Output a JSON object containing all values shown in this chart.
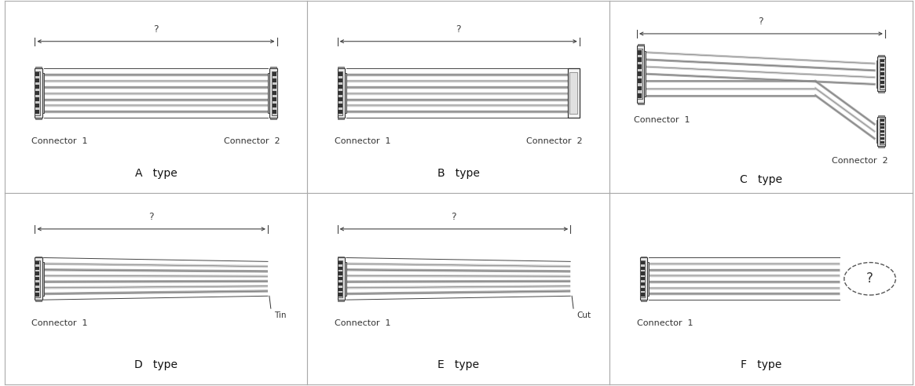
{
  "bg": "#ffffff",
  "border_color": "#aaaaaa",
  "wire_dark": "#888888",
  "wire_light": "#cccccc",
  "wire_black": "#333333",
  "conn_body": "#dddddd",
  "conn_dark": "#555555",
  "conn_slot": "#222222",
  "conn_edge": "#333333",
  "dim_color": "#444444",
  "text_color": "#333333",
  "panels": [
    {
      "type": "A",
      "row": 0,
      "col": 0,
      "title": "A   type",
      "c1": "Connector  1",
      "c2": "Connector  2"
    },
    {
      "type": "B",
      "row": 0,
      "col": 1,
      "title": "B   type",
      "c1": "Connector  1",
      "c2": "Connector  2"
    },
    {
      "type": "C",
      "row": 0,
      "col": 2,
      "title": "C   type",
      "c1": "Connector  1",
      "c2": "Connector  2"
    },
    {
      "type": "D",
      "row": 1,
      "col": 0,
      "title": "D   type",
      "c1": "Connector  1",
      "c2": "Tin"
    },
    {
      "type": "E",
      "row": 1,
      "col": 1,
      "title": "E   type",
      "c1": "Connector  1",
      "c2": "Cut"
    },
    {
      "type": "F",
      "row": 1,
      "col": 2,
      "title": "F   type",
      "c1": "Connector  1",
      "c2": "?"
    }
  ],
  "n_wires": 7,
  "wire_colors": [
    "#aaaaaa",
    "#cccccc",
    "#aaaaaa",
    "#cccccc",
    "#aaaaaa",
    "#cccccc",
    "#aaaaaa"
  ],
  "wire_sep_color": "#555555"
}
